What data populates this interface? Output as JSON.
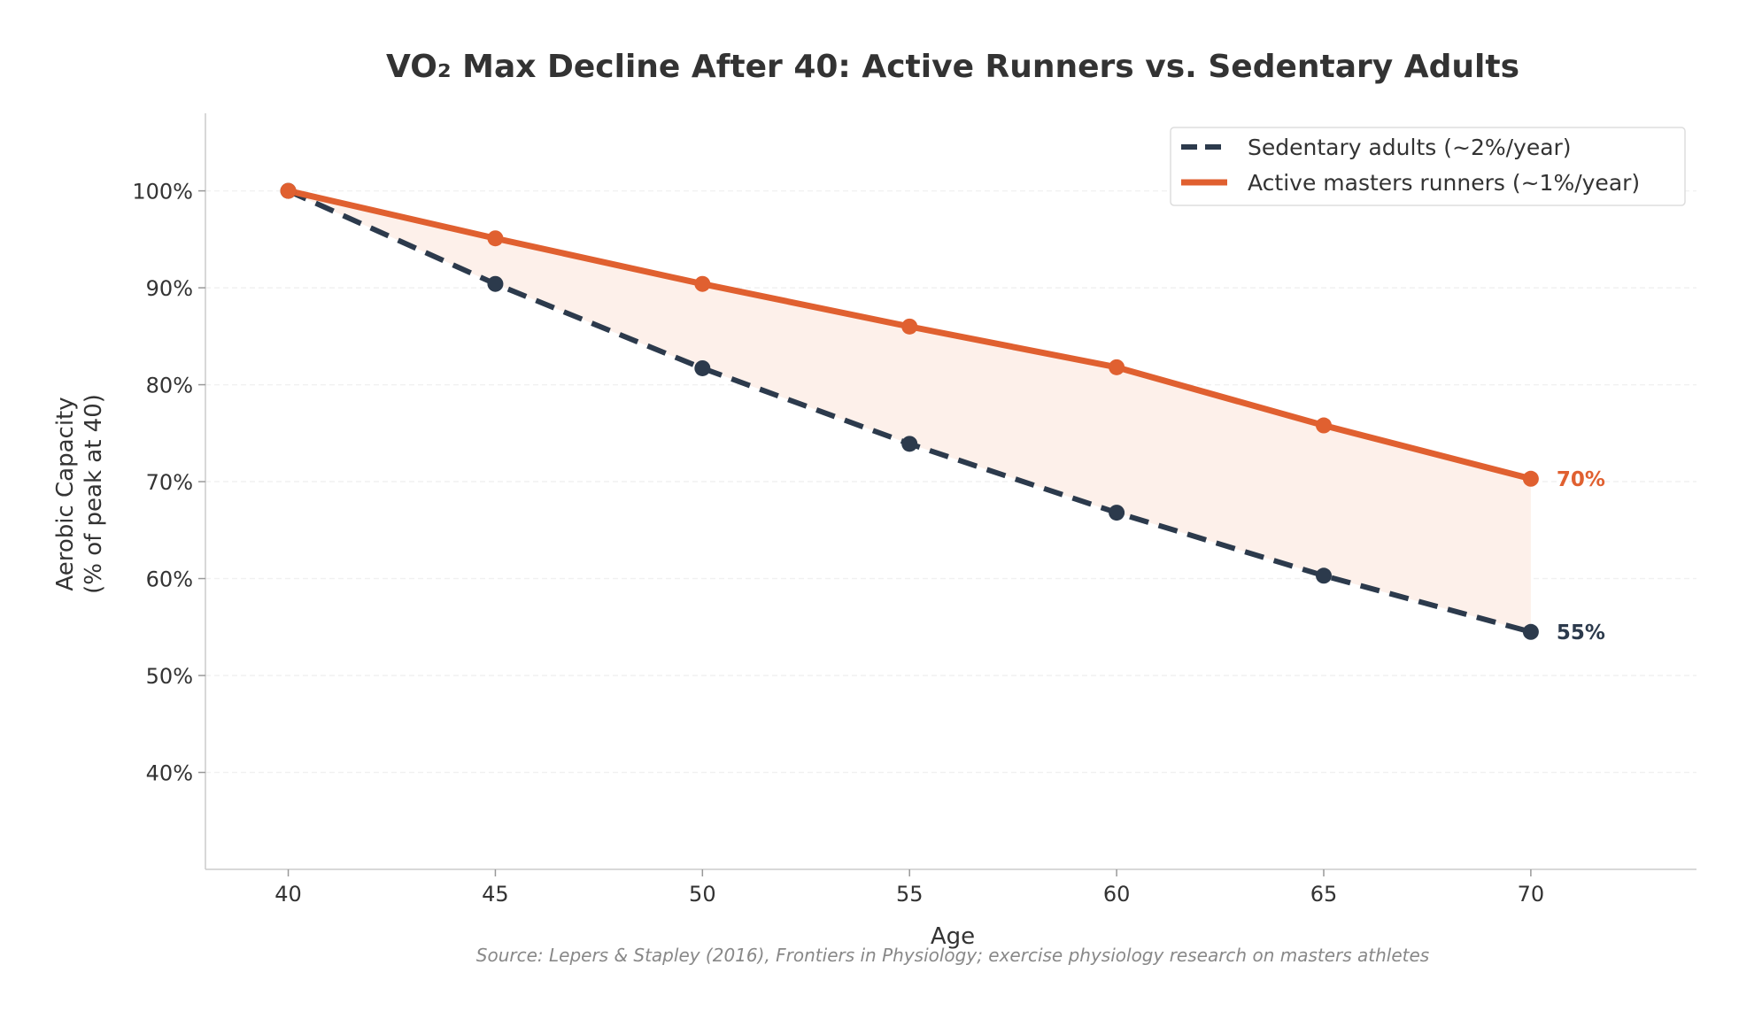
{
  "colors": {
    "sedentary": "#2c3a4c",
    "active": "#e06030",
    "fill": "#fdf0ea",
    "grid": "#f1f1f1",
    "axis": "#cccccc"
  },
  "chart_data": {
    "type": "line",
    "title": "VO₂ Max Decline After 40: Active Runners vs. Sedentary Adults",
    "xlabel": "Age",
    "ylabel_line1": "Aerobic Capacity",
    "ylabel_line2": "(% of peak at 40)",
    "x": [
      40,
      45,
      50,
      55,
      60,
      65,
      70
    ],
    "x_ticks": [
      "40",
      "45",
      "50",
      "55",
      "60",
      "65",
      "70"
    ],
    "y_ticks": [
      "40%",
      "50%",
      "60%",
      "70%",
      "80%",
      "90%",
      "100%"
    ],
    "y_tick_values": [
      40,
      50,
      60,
      70,
      80,
      90,
      100
    ],
    "xlim": [
      38,
      74
    ],
    "ylim": [
      30,
      108
    ],
    "grid": "horizontal, faint",
    "legend_position": "top-right",
    "shaded_region": "between series",
    "series": [
      {
        "name": "Sedentary adults (~2%/year)",
        "style": "dashed",
        "values": [
          100,
          90.4,
          81.7,
          73.9,
          66.8,
          60.3,
          54.5
        ],
        "end_label": "55%"
      },
      {
        "name": "Active masters runners (~1%/year)",
        "style": "solid",
        "values": [
          100,
          95.1,
          90.4,
          86.0,
          81.8,
          75.8,
          70.3
        ],
        "end_label": "70%"
      }
    ]
  },
  "source": "Source: Lepers & Stapley (2016), Frontiers in Physiology; exercise physiology research on masters athletes"
}
